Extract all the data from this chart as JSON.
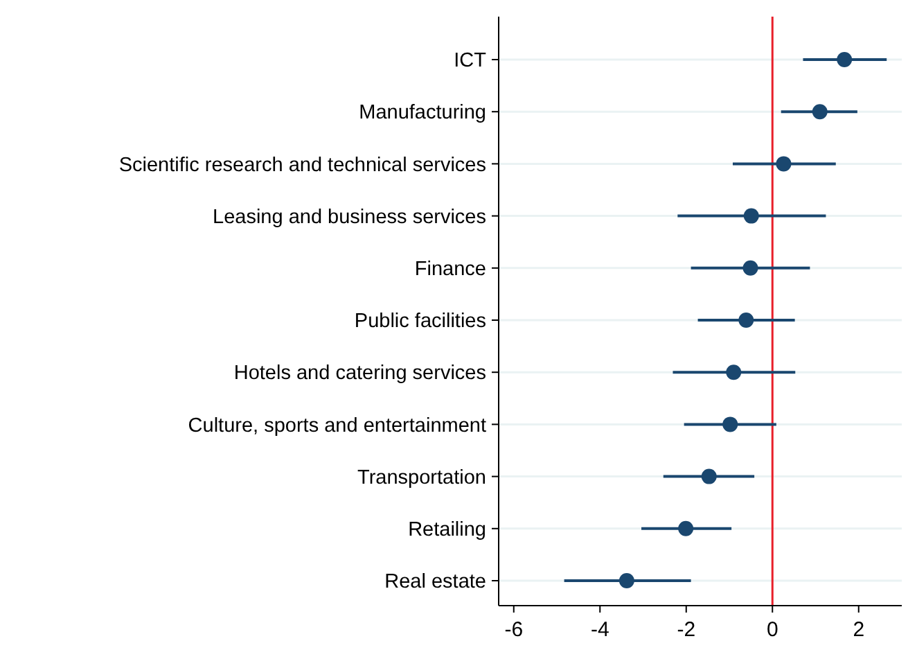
{
  "chart_data": {
    "type": "scatter",
    "orientation": "horizontal",
    "categories": [
      "ICT",
      "Manufacturing",
      "Scientific research and technical services",
      "Leasing and business services",
      "Finance",
      "Public facilities",
      "Hotels and catering services",
      "Culture, sports and entertainment",
      "Transportation",
      "Retailing",
      "Real estate"
    ],
    "values": [
      1.67,
      1.1,
      0.26,
      -0.49,
      -0.51,
      -0.61,
      -0.9,
      -0.98,
      -1.47,
      -2.01,
      -3.38
    ],
    "errors": [
      [
        0.71,
        2.65
      ],
      [
        0.2,
        1.97
      ],
      [
        -0.92,
        1.47
      ],
      [
        -2.2,
        1.24
      ],
      [
        -1.89,
        0.87
      ],
      [
        -1.73,
        0.52
      ],
      [
        -2.31,
        0.53
      ],
      [
        -2.05,
        0.09
      ],
      [
        -2.53,
        -0.42
      ],
      [
        -3.04,
        -0.95
      ],
      [
        -4.83,
        -1.89
      ]
    ],
    "color": "#1a476f",
    "marker": "circle",
    "grid": "y",
    "xlim": [
      -6.35,
      3
    ],
    "xticks": [
      -6,
      -4,
      -2,
      0,
      2
    ],
    "ref_lines": [
      {
        "axis": "x",
        "value": 0,
        "color": "#e8202a"
      }
    ]
  }
}
